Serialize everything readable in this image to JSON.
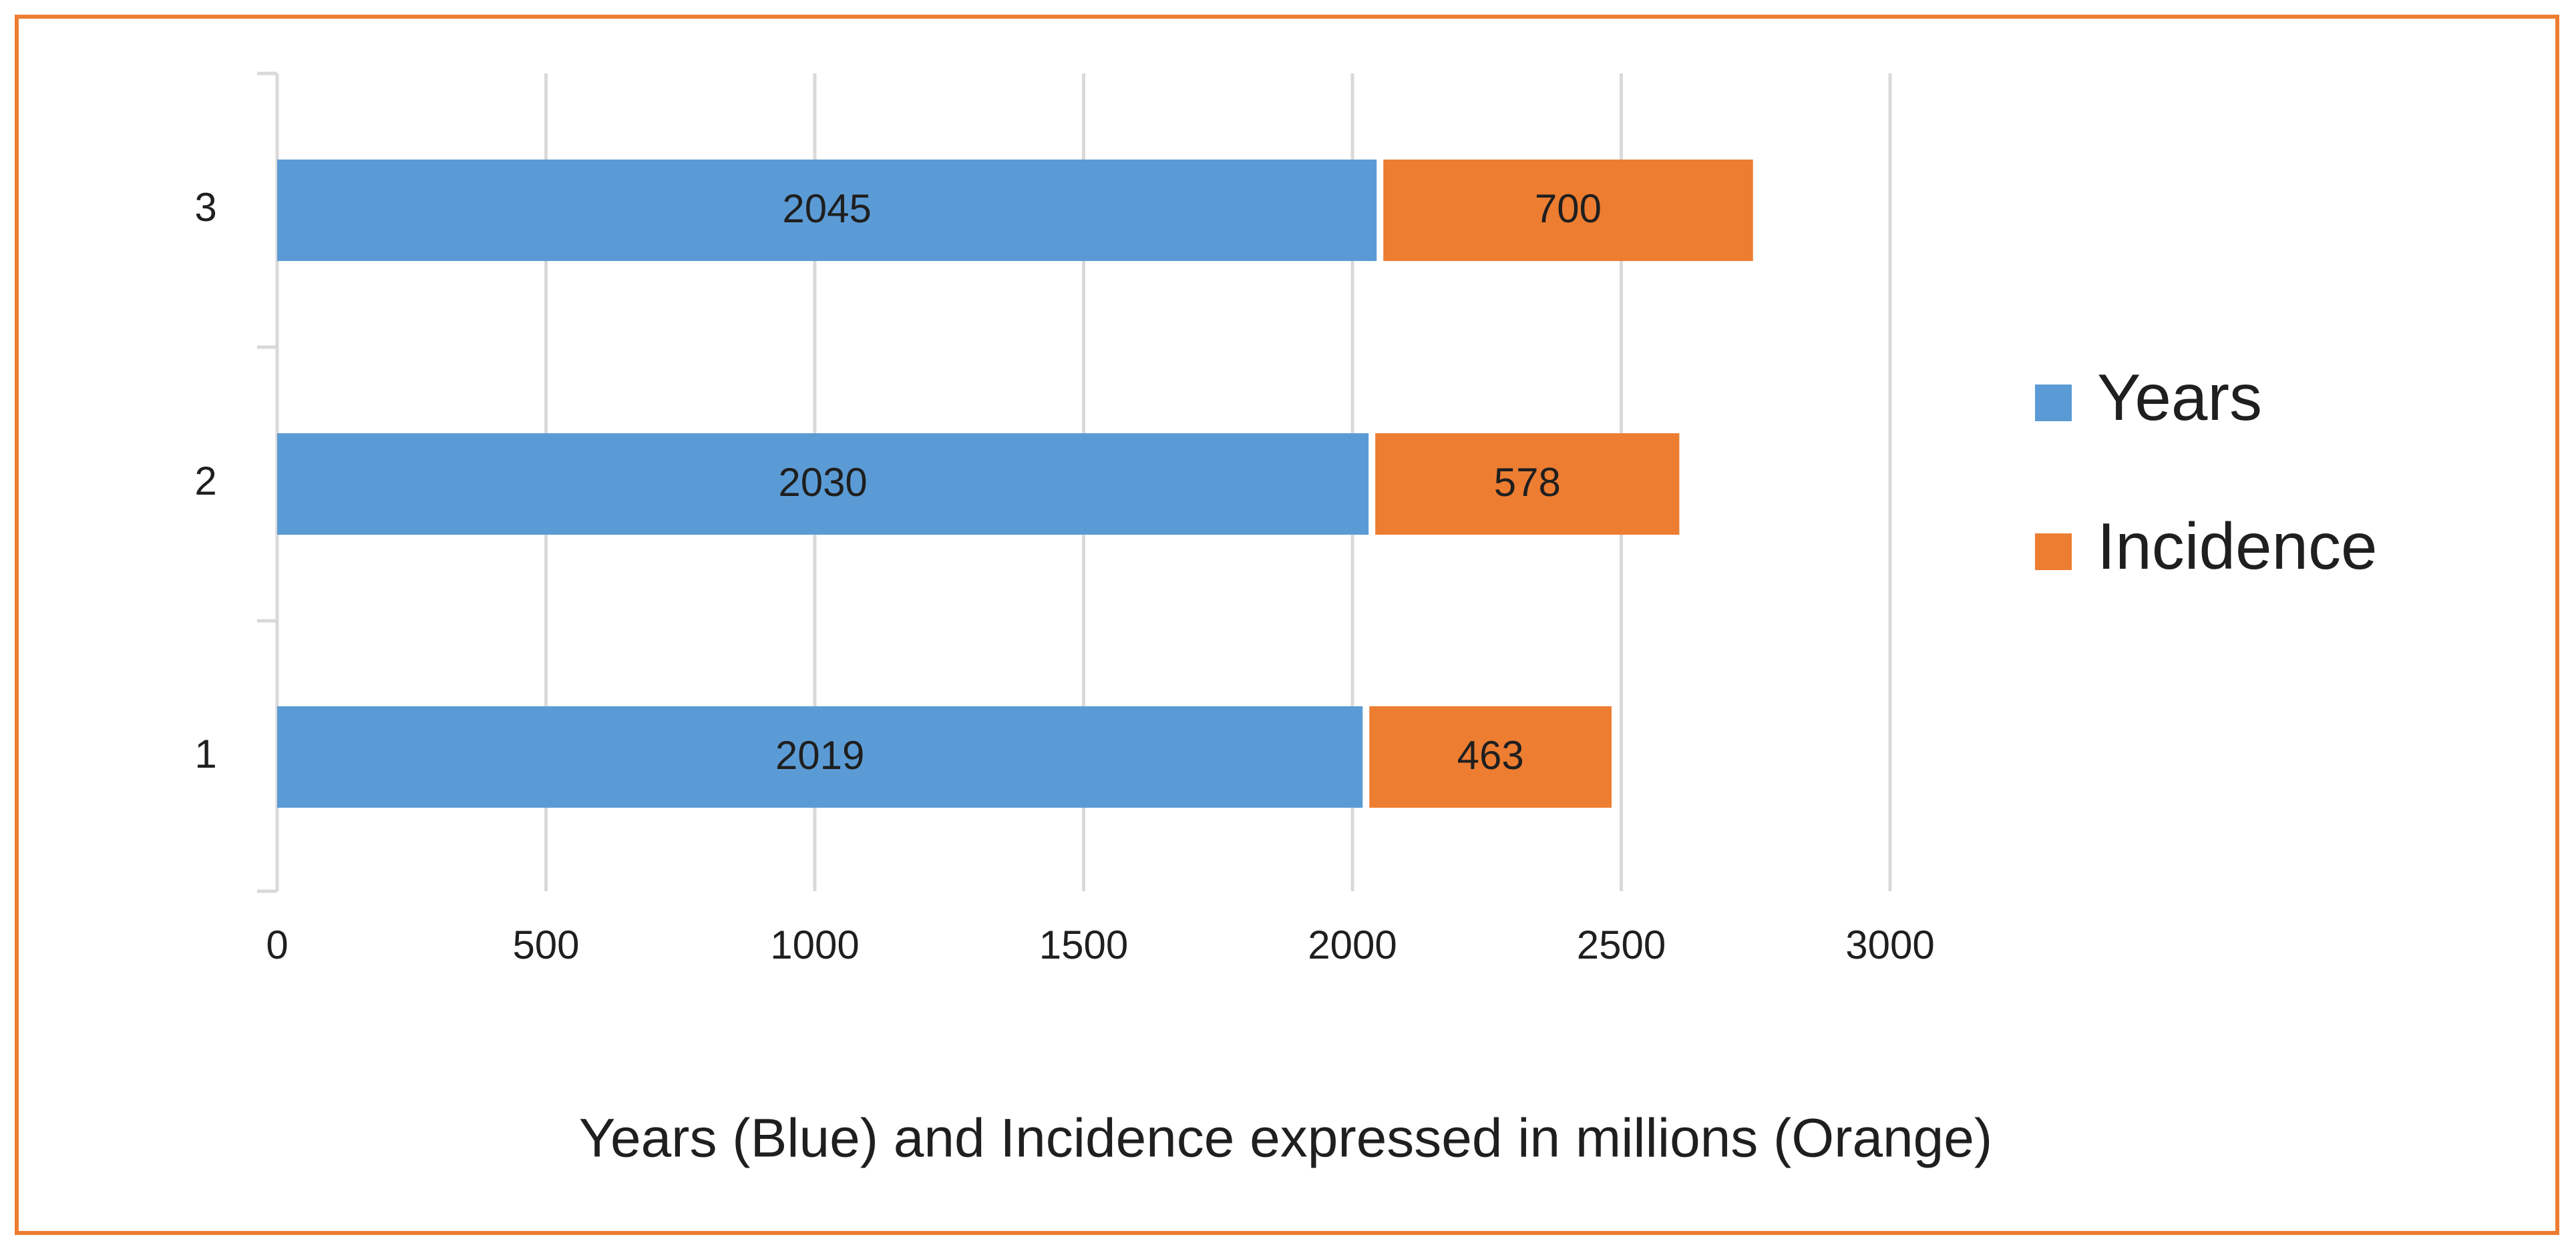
{
  "chart_data": {
    "type": "bar",
    "orientation": "horizontal",
    "stacked": true,
    "categories": [
      "1",
      "2",
      "3"
    ],
    "series": [
      {
        "name": "Years",
        "values": [
          2019,
          2030,
          2045
        ],
        "color": "#5B9BD5"
      },
      {
        "name": "Incidence",
        "values": [
          463,
          578,
          700
        ],
        "color": "#ED7D31"
      }
    ],
    "data_labels": [
      [
        "2019",
        "2030",
        "2045"
      ],
      [
        "463",
        "578",
        "700"
      ]
    ],
    "xticks": [
      "0",
      "500",
      "1000",
      "1500",
      "2000",
      "2500",
      "3000"
    ],
    "xlim": [
      0,
      3000
    ],
    "grid": true,
    "legend_position": "right",
    "xlabel": "Years (Blue) and Incidence expressed in millions (Orange)",
    "ylabel": "",
    "title": ""
  },
  "colors": {
    "frame": "#ED7D31",
    "grid": "#D9D9D9",
    "text": "#1F1F1F"
  }
}
